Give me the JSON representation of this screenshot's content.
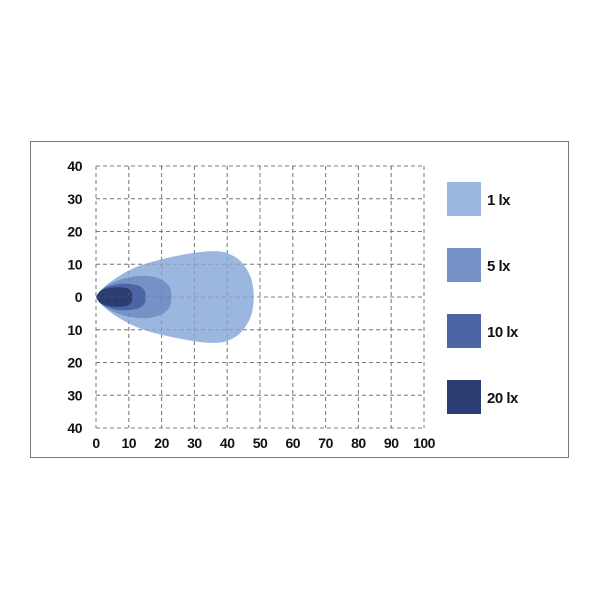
{
  "chart_data": {
    "type": "area",
    "title": "",
    "xlabel": "",
    "ylabel": "",
    "xlim": [
      0,
      100
    ],
    "ylim": [
      -40,
      40
    ],
    "x_ticks": [
      "0",
      "10",
      "20",
      "30",
      "40",
      "50",
      "60",
      "70",
      "80",
      "90",
      "100"
    ],
    "y_ticks": [
      "40",
      "30",
      "20",
      "10",
      "0",
      "10",
      "20",
      "30",
      "40"
    ],
    "grid": true,
    "grid_style": "dashed",
    "legend_position": "right",
    "series": [
      {
        "name": "1 lx",
        "color": "#9bb7e0",
        "upper_contour": [
          [
            0,
            0
          ],
          [
            3,
            3.5
          ],
          [
            8,
            7
          ],
          [
            14,
            9.8
          ],
          [
            22,
            12
          ],
          [
            30,
            13.5
          ],
          [
            36,
            14
          ],
          [
            40,
            13.4
          ],
          [
            44,
            11
          ],
          [
            47,
            6.5
          ],
          [
            48,
            2
          ],
          [
            48,
            0
          ]
        ]
      },
      {
        "name": "5 lx",
        "color": "#7592c6",
        "upper_contour": [
          [
            0,
            0
          ],
          [
            2,
            2.5
          ],
          [
            6,
            4.8
          ],
          [
            11,
            6.2
          ],
          [
            16,
            6.4
          ],
          [
            20,
            5.3
          ],
          [
            22.5,
            3
          ],
          [
            23,
            0
          ]
        ]
      },
      {
        "name": "10 lx",
        "color": "#4b66a2",
        "upper_contour": [
          [
            0,
            0
          ],
          [
            2,
            2.4
          ],
          [
            6,
            3.8
          ],
          [
            10,
            4
          ],
          [
            13.5,
            3.2
          ],
          [
            15,
            1.5
          ],
          [
            15,
            0
          ]
        ]
      },
      {
        "name": "20 lx",
        "color": "#2b3d72",
        "upper_contour": [
          [
            0,
            0
          ],
          [
            1.5,
            2
          ],
          [
            5,
            2.9
          ],
          [
            9,
            2.8
          ],
          [
            10.8,
            1.6
          ],
          [
            11,
            0
          ]
        ]
      }
    ]
  }
}
